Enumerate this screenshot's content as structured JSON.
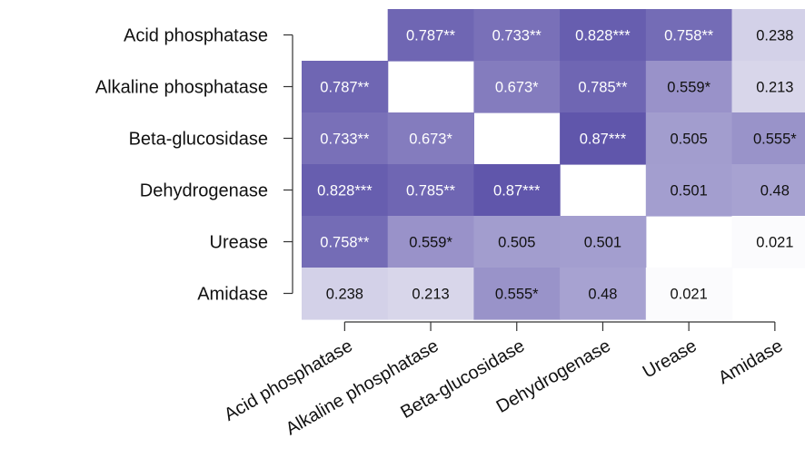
{
  "chart_data": {
    "type": "heatmap",
    "rows": [
      "Acid phosphatase",
      "Alkaline phosphatase",
      "Beta-glucosidase",
      "Dehydrogenase",
      "Urease",
      "Amidase"
    ],
    "columns": [
      "Acid phosphatase",
      "Alkaline phosphatase",
      "Beta-glucosidase",
      "Dehydrogenase",
      "Urease",
      "Amidase"
    ],
    "values": [
      [
        null,
        0.787,
        0.733,
        0.828,
        0.758,
        0.238
      ],
      [
        0.787,
        null,
        0.673,
        0.785,
        0.559,
        0.213
      ],
      [
        0.733,
        0.673,
        null,
        0.87,
        0.505,
        0.555
      ],
      [
        0.828,
        0.785,
        0.87,
        null,
        0.501,
        0.48
      ],
      [
        0.758,
        0.559,
        0.505,
        0.501,
        null,
        0.021
      ],
      [
        0.238,
        0.213,
        0.555,
        0.48,
        0.021,
        null
      ]
    ],
    "labels": [
      [
        "",
        "0.787**",
        "0.733**",
        "0.828***",
        "0.758**",
        "0.238"
      ],
      [
        "0.787**",
        "",
        "0.673*",
        "0.785**",
        "0.559*",
        "0.213"
      ],
      [
        "0.733**",
        "0.673*",
        "",
        "0.87***",
        "0.505",
        "0.555*"
      ],
      [
        "0.828***",
        "0.785**",
        "0.87***",
        "",
        "0.501",
        "0.48"
      ],
      [
        "0.758**",
        "0.559*",
        "0.505",
        "0.501",
        "",
        "0.021"
      ],
      [
        "0.238",
        "0.213",
        "0.555*",
        "0.48",
        "0.021",
        ""
      ]
    ],
    "color_low": "#ffffff",
    "color_high": "#5a50a8",
    "text_color_dark_cells": "#ffffff",
    "text_color_light_cells": "#111111",
    "grid": false
  }
}
